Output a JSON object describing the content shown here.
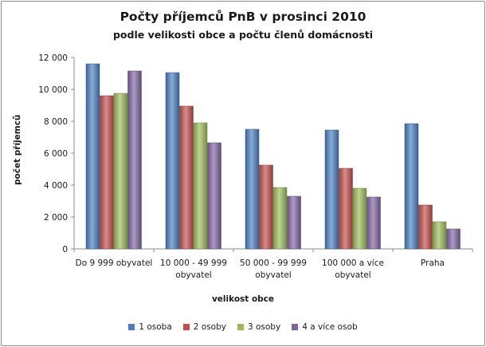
{
  "title": "Počty příjemců PnB v prosinci 2010",
  "subtitle": "podle velikosti obce a počtu členů domácnosti",
  "chart_data": {
    "type": "bar",
    "title": "Počty příjemců PnB v prosinci 2010",
    "subtitle": "podle velikosti obce a počtu členů domácnosti",
    "xlabel": "velikost obce",
    "ylabel": "počet příjemců",
    "ylim": [
      0,
      12000
    ],
    "yticks": [
      0,
      2000,
      4000,
      6000,
      8000,
      10000,
      12000
    ],
    "ytick_labels": [
      "0",
      "2 000",
      "4 000",
      "6 000",
      "8 000",
      "10 000",
      "12 000"
    ],
    "grid": false,
    "legend_position": "bottom",
    "categories": [
      [
        "Do 9 999 obyvatel"
      ],
      [
        "10 000 - 49 999",
        "obyvatel"
      ],
      [
        "50 000 - 99 999",
        "obyvatel"
      ],
      [
        "100 000 a více",
        "obyvatel"
      ],
      [
        "Praha"
      ]
    ],
    "series": [
      {
        "name": "1 osoba",
        "color": "#4a7ebf",
        "values": [
          11600,
          11050,
          7500,
          7450,
          7850
        ]
      },
      {
        "name": "2 osoby",
        "color": "#c0504d",
        "values": [
          9600,
          8950,
          5250,
          5050,
          2750
        ]
      },
      {
        "name": "3 osoby",
        "color": "#9bbb59",
        "values": [
          9750,
          7900,
          3850,
          3800,
          1700
        ]
      },
      {
        "name": "4 a více osob",
        "color": "#8064a2",
        "values": [
          11150,
          6650,
          3300,
          3250,
          1250
        ]
      }
    ]
  }
}
